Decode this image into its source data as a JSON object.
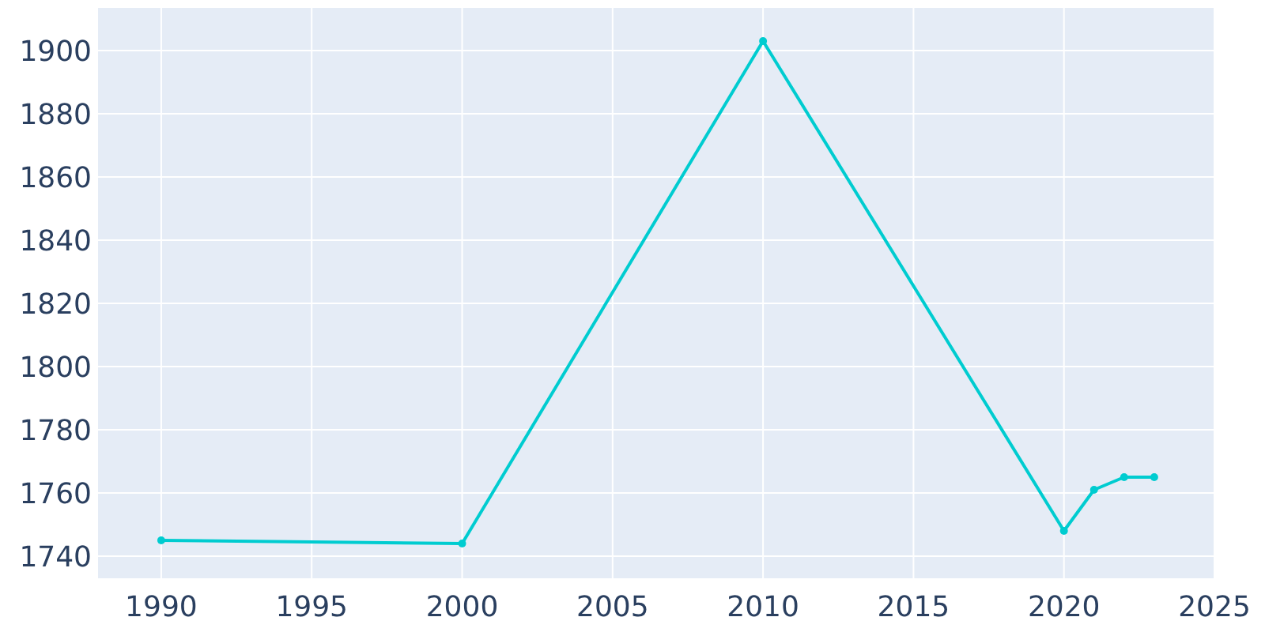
{
  "chart_data": {
    "type": "line",
    "x": [
      1990,
      2000,
      2010,
      2020,
      2021,
      2022,
      2023
    ],
    "series": [
      {
        "color": "#00ccd0",
        "values": [
          1745,
          1744,
          1903,
          1748,
          1761,
          1765,
          1765
        ]
      }
    ],
    "xlim": [
      1987.9,
      2025
    ],
    "xticks": [
      1990,
      1995,
      2000,
      2005,
      2010,
      2015,
      2020,
      2025
    ],
    "ylim": [
      1733,
      1913.5
    ],
    "yticks": [
      1740,
      1760,
      1780,
      1800,
      1820,
      1840,
      1860,
      1880,
      1900
    ],
    "grid": true,
    "marker": "circle",
    "line_style": "solid"
  }
}
